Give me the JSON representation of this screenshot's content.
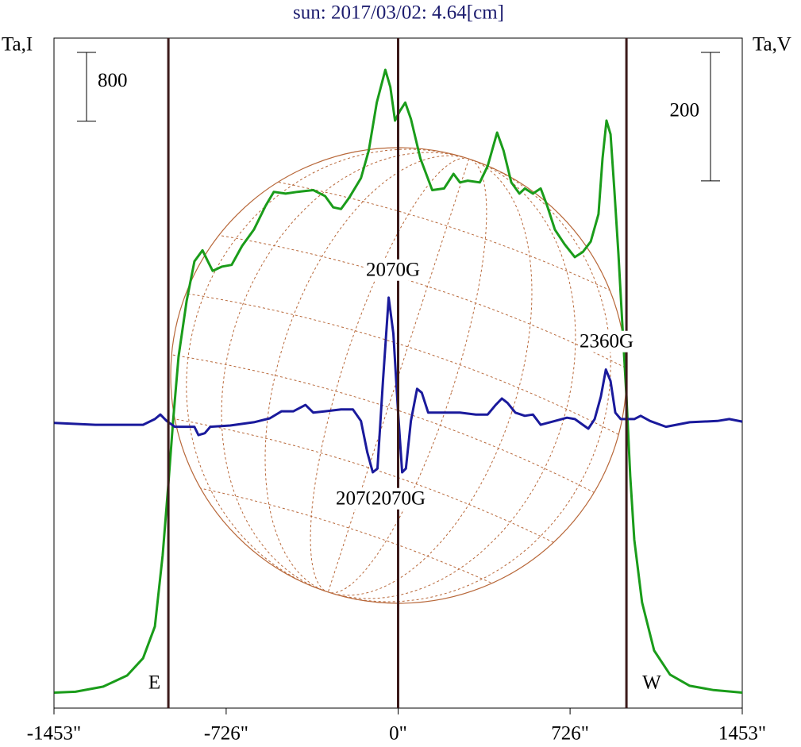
{
  "chart_data": {
    "type": "line",
    "title": "sun: 2017/03/02: 4.64[cm]",
    "y_label": "Ta,I",
    "y2_label": "Ta,V",
    "xlim": [
      -1453,
      1453
    ],
    "xticks": [
      {
        "value": -1453,
        "label": "-1453\""
      },
      {
        "value": -726,
        "label": "-726\""
      },
      {
        "value": 0,
        "label": "0\""
      },
      {
        "value": 726,
        "label": "726\""
      },
      {
        "value": 1453,
        "label": "1453\""
      }
    ],
    "ylim": [
      -200,
      7600
    ],
    "y2lim": [
      -445,
      598
    ],
    "scale_bars": [
      {
        "value": 800,
        "axis": "y"
      },
      {
        "value": 200,
        "axis": "y2"
      }
    ],
    "vlines": [
      {
        "x": -970,
        "label": "E"
      },
      {
        "x": 0
      },
      {
        "x": 964,
        "label": "W"
      }
    ],
    "annotations": [
      "2070G",
      "2070G",
      "2070G",
      "2360G"
    ],
    "series": [
      {
        "name": "I",
        "color": "#1a9c1a",
        "x": [
          -1452,
          -1362,
          -1245,
          -1144,
          -1077,
          -1027,
          -994,
          -970,
          -950,
          -927,
          -893,
          -860,
          -826,
          -803,
          -783,
          -743,
          -703,
          -659,
          -609,
          -559,
          -525,
          -475,
          -425,
          -358,
          -308,
          -274,
          -241,
          -207,
          -157,
          -124,
          -90,
          -54,
          -33,
          -13,
          7,
          30,
          54,
          94,
          144,
          194,
          234,
          261,
          294,
          345,
          378,
          418,
          445,
          478,
          512,
          535,
          569,
          602,
          629,
          662,
          703,
          746,
          780,
          813,
          846,
          863,
          880,
          897,
          913,
          930,
          947,
          964,
          980,
          997,
          1030,
          1081,
          1148,
          1231,
          1332,
          1453
        ],
        "values": [
          -20,
          -10,
          50,
          180,
          380,
          750,
          1580,
          2410,
          3150,
          3890,
          4540,
          5000,
          5130,
          5000,
          4890,
          4940,
          4960,
          5180,
          5370,
          5650,
          5810,
          5790,
          5810,
          5830,
          5760,
          5630,
          5610,
          5740,
          5970,
          6290,
          6850,
          7230,
          7030,
          6640,
          6750,
          6850,
          6660,
          6200,
          5830,
          5850,
          6020,
          5920,
          5940,
          5920,
          6110,
          6500,
          6290,
          5920,
          5790,
          5850,
          5790,
          5850,
          5650,
          5370,
          5200,
          5050,
          5110,
          5230,
          5550,
          6200,
          6640,
          6480,
          5830,
          5090,
          4260,
          3430,
          2500,
          1760,
          1030,
          470,
          190,
          60,
          10,
          -20
        ]
      },
      {
        "name": "V",
        "color": "#1a1a9c",
        "axis": "y2",
        "x": [
          -1452,
          -1278,
          -1077,
          -1027,
          -1004,
          -977,
          -943,
          -860,
          -843,
          -816,
          -793,
          -709,
          -609,
          -542,
          -492,
          -442,
          -391,
          -358,
          -308,
          -241,
          -191,
          -157,
          -130,
          -107,
          -87,
          -64,
          -40,
          -20,
          0,
          17,
          33,
          54,
          80,
          100,
          127,
          194,
          261,
          328,
          378,
          412,
          438,
          462,
          495,
          535,
          569,
          602,
          662,
          713,
          746,
          780,
          803,
          830,
          856,
          877,
          897,
          917,
          940,
          997,
          1024,
          1064,
          1131,
          1231,
          1348,
          1398,
          1453
        ],
        "values": [
          -1,
          -4,
          -4,
          5,
          12,
          2,
          -7,
          -7,
          -20,
          -17,
          -7,
          -5,
          0,
          6,
          17,
          17,
          27,
          15,
          17,
          20,
          20,
          2,
          -47,
          -78,
          -72,
          64,
          194,
          138,
          15,
          -78,
          -72,
          2,
          52,
          46,
          15,
          15,
          15,
          12,
          12,
          27,
          37,
          30,
          15,
          10,
          12,
          -4,
          2,
          7,
          5,
          -4,
          -10,
          5,
          40,
          82,
          64,
          15,
          5,
          5,
          10,
          2,
          -7,
          0,
          2,
          5,
          1
        ]
      }
    ]
  }
}
